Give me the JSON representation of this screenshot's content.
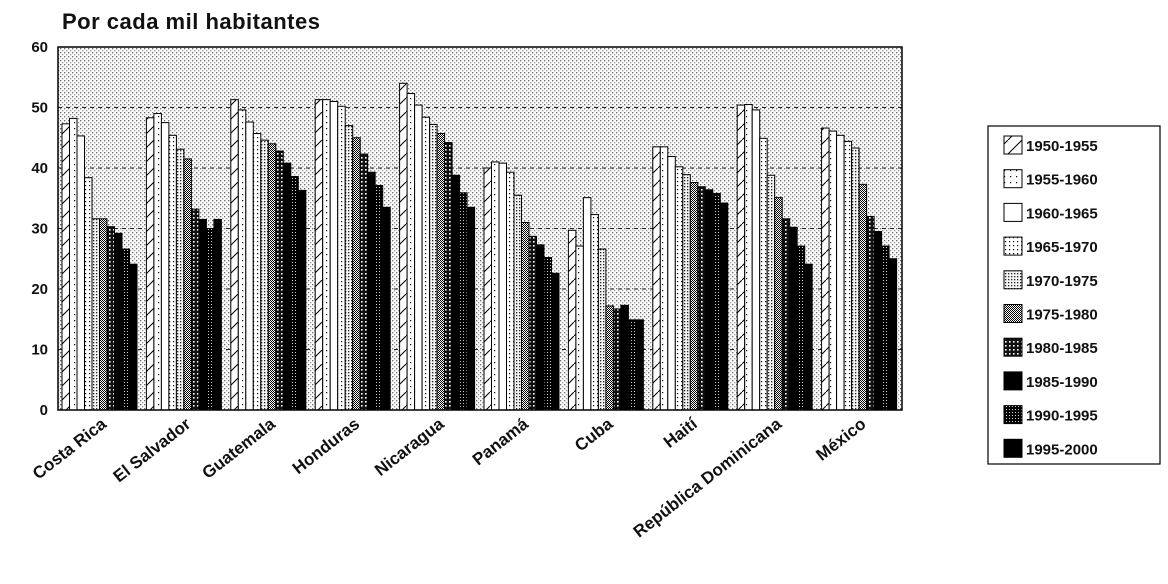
{
  "chart_data": {
    "type": "bar",
    "title": "Por cada mil habitantes",
    "xlabel": "",
    "ylabel": "",
    "ylim": [
      0,
      60
    ],
    "yticks": [
      0,
      10,
      20,
      30,
      40,
      50,
      60
    ],
    "grid": true,
    "legend_position": "right",
    "categories": [
      "Costa Rica",
      "El Salvador",
      "Guatemala",
      "Honduras",
      "Nicaragua",
      "Panamá",
      "Cuba",
      "Haití",
      "República Dominicana",
      "México"
    ],
    "series": [
      {
        "name": "1950-1955",
        "values": [
          47.3,
          48.3,
          51.3,
          51.3,
          54.0,
          40.0,
          29.7,
          43.5,
          50.4,
          46.6
        ]
      },
      {
        "name": "1955-1960",
        "values": [
          48.2,
          49.0,
          49.6,
          51.3,
          52.3,
          41.0,
          27.1,
          43.5,
          50.5,
          46.1
        ]
      },
      {
        "name": "1960-1965",
        "values": [
          45.3,
          47.5,
          47.6,
          51.0,
          50.4,
          40.8,
          35.1,
          41.9,
          49.6,
          45.4
        ]
      },
      {
        "name": "1965-1970",
        "values": [
          38.4,
          45.4,
          45.7,
          50.2,
          48.4,
          39.3,
          32.3,
          40.2,
          44.9,
          44.4
        ]
      },
      {
        "name": "1970-1975",
        "values": [
          31.6,
          43.1,
          44.6,
          47.0,
          47.2,
          35.5,
          26.6,
          38.9,
          38.8,
          43.3
        ]
      },
      {
        "name": "1975-1980",
        "values": [
          31.6,
          41.5,
          44.0,
          45.0,
          45.7,
          31.0,
          17.2,
          37.6,
          35.1,
          37.3
        ]
      },
      {
        "name": "1980-1985",
        "values": [
          30.3,
          33.2,
          42.8,
          42.3,
          44.2,
          28.7,
          16.7,
          36.9,
          31.6,
          32.0
        ]
      },
      {
        "name": "1985-1990",
        "values": [
          29.2,
          31.5,
          40.8,
          39.3,
          38.8,
          27.3,
          17.3,
          36.4,
          30.2,
          29.5
        ]
      },
      {
        "name": "1990-1995",
        "values": [
          26.6,
          30.0,
          38.6,
          37.1,
          35.9,
          25.2,
          14.9,
          35.8,
          27.1,
          27.1
        ]
      },
      {
        "name": "1995-2000",
        "values": [
          24.1,
          31.5,
          36.3,
          33.5,
          33.5,
          22.6,
          14.9,
          34.2,
          24.1,
          25.0
        ]
      }
    ]
  },
  "style": {
    "plot_background": "#e6e6e6",
    "bar_outline": "#000000",
    "series_fills": [
      "#ffffff",
      "#fafafa",
      "#ffffff",
      "#f2f2f2",
      "#d9d9d9",
      "#a6a6a6",
      "#4d4d4d",
      "#0d0d0d",
      "#2b2b2b",
      "#000000"
    ]
  }
}
